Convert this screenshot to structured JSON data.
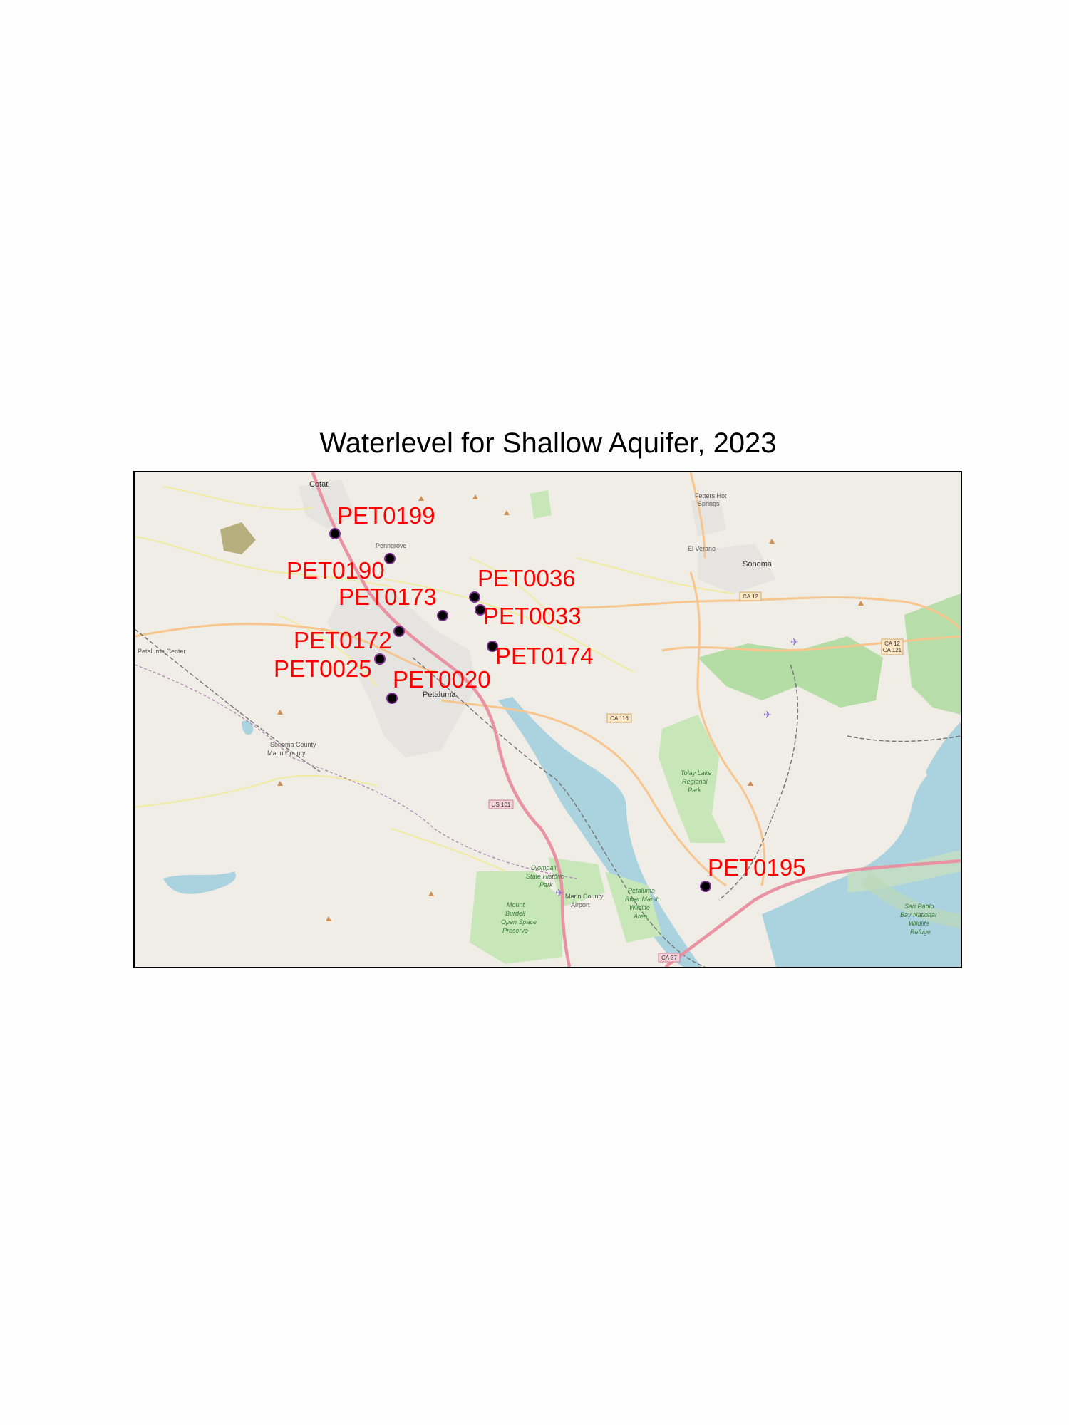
{
  "title": "Waterlevel for Shallow Aquifer, 2023",
  "colors": {
    "marker_fill": "#000000",
    "marker_ring": "#7a2f8f",
    "label": "#ff0000",
    "land": "#f0ede6",
    "water": "#aad3df",
    "park": "#c8e7b8",
    "major_road": "#e892a2",
    "secondary_road": "#f7c68f",
    "minor_road": "#f1eaa0"
  },
  "basemap_labels": {
    "cotati": "Cotati",
    "penngrove": "Penngrove",
    "fetters_hot_springs": "Fetters Hot",
    "fetters_hot_springs_2": "Springs",
    "el_verano": "El Verano",
    "sonoma": "Sonoma",
    "petaluma_center": "Petaluma Center",
    "petaluma": "Petaluma",
    "sonoma_county": "Sonoma County",
    "marin_county": "Marin County",
    "tolay_1": "Tolay Lake",
    "tolay_2": "Regional",
    "tolay_3": "Park",
    "olompali_1": "Olompali",
    "olompali_2": "State Historic",
    "olompali_3": "Park",
    "burdell_1": "Mount",
    "burdell_2": "Burdell",
    "burdell_3": "Open Space",
    "burdell_4": "Preserve",
    "marsh_1": "Petaluma",
    "marsh_2": "River Marsh",
    "marsh_3": "Wildlife",
    "marsh_4": "Area",
    "airport_1": "Marin County",
    "airport_2": "Airport",
    "refuge_1": "San Pablo",
    "refuge_2": "Bay National",
    "refuge_3": "Wildlife",
    "refuge_4": "Refuge",
    "ca12": "CA 12",
    "ca12_121a": "CA 12",
    "ca12_121b": "CA 121",
    "ca116": "CA 116",
    "us101": "US 101",
    "ca37": "CA 37"
  },
  "wells": [
    {
      "id": "PET0199"
    },
    {
      "id": "PET0190"
    },
    {
      "id": "PET0036"
    },
    {
      "id": "PET0173"
    },
    {
      "id": "PET0033"
    },
    {
      "id": "PET0172"
    },
    {
      "id": "PET0174"
    },
    {
      "id": "PET0025"
    },
    {
      "id": "PET0020"
    },
    {
      "id": "PET0195"
    }
  ]
}
